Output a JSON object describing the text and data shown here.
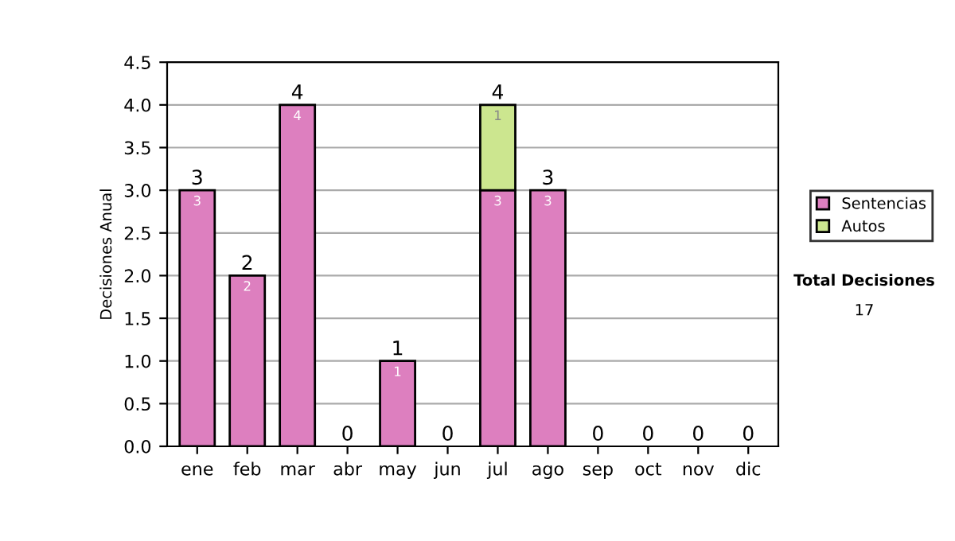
{
  "chart_data": {
    "type": "bar",
    "stacked": true,
    "ylabel": "Decisiones Anual",
    "categories": [
      "ene",
      "feb",
      "mar",
      "abr",
      "may",
      "jun",
      "jul",
      "ago",
      "sep",
      "oct",
      "nov",
      "dic"
    ],
    "series": [
      {
        "name": "Sentencias",
        "color": "#dd7fbf",
        "values": [
          3,
          2,
          4,
          0,
          1,
          0,
          3,
          3,
          0,
          0,
          0,
          0
        ],
        "value_labels": [
          "3",
          "2",
          "4",
          null,
          "1",
          null,
          "3",
          "3",
          null,
          null,
          null,
          null
        ]
      },
      {
        "name": "Autos",
        "color": "#cce68f",
        "values": [
          0,
          0,
          0,
          0,
          0,
          0,
          1,
          0,
          0,
          0,
          0,
          0
        ],
        "value_labels": [
          null,
          null,
          null,
          null,
          null,
          null,
          "1",
          null,
          null,
          null,
          null,
          null
        ]
      }
    ],
    "totals": [
      "3",
      "2",
      "4",
      "0",
      "1",
      "0",
      "4",
      "3",
      "0",
      "0",
      "0",
      "0"
    ],
    "ylim": [
      0,
      4.5
    ],
    "yticks": [
      {
        "value": 0,
        "label": "0.0"
      },
      0.5,
      {
        "value": 1,
        "label": "1.0"
      },
      1.5,
      {
        "value": 2,
        "label": "2.0"
      },
      2.5,
      {
        "value": 3,
        "label": "3.0"
      },
      3.5,
      {
        "value": 4,
        "label": "4.0"
      },
      4.5
    ],
    "grid": "y",
    "legend": "right",
    "annotations": [
      "Total Decisiones",
      "17"
    ]
  }
}
